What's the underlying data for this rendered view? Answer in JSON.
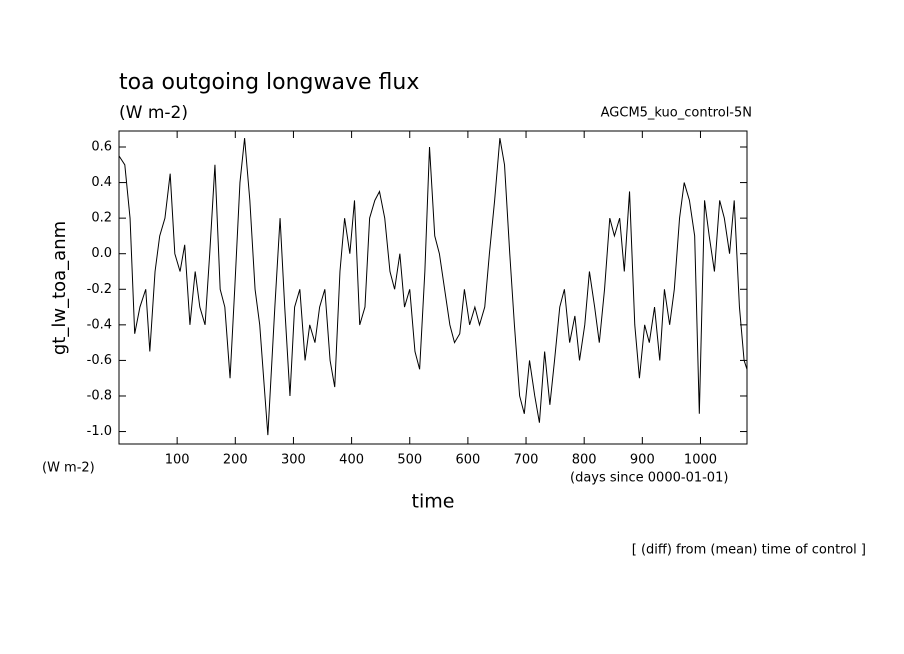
{
  "chart_data": {
    "type": "line",
    "title": "toa outgoing longwave flux",
    "units": "(W m-2)",
    "subtitle": "AGCM5_kuo_control-5N",
    "y_label": "gt_lw_toa_anm",
    "y_units": "(W m-2)",
    "x_label": "time",
    "x_units": "(days since 0000-01-01)",
    "footnote": "[ (diff) from (mean) time of control ]",
    "color": "#000000",
    "xlim": [
      0,
      1080
    ],
    "ylim": [
      -1.07,
      0.69
    ],
    "xticks": [
      100,
      200,
      300,
      400,
      500,
      600,
      700,
      800,
      900,
      1000
    ],
    "yticks": [
      {
        "value": -1,
        "label": "-1.0"
      },
      -0.8,
      -0.6,
      -0.4,
      -0.2,
      {
        "value": 0,
        "label": "0.0"
      },
      0.2,
      0.4,
      0.6
    ],
    "x": [
      0,
      10,
      19,
      27,
      36,
      46,
      53,
      62,
      70,
      79,
      88,
      96,
      105,
      113,
      122,
      131,
      139,
      148,
      156,
      165,
      174,
      182,
      191,
      199,
      208,
      216,
      225,
      234,
      242,
      251,
      256,
      268,
      277,
      285,
      294,
      302,
      311,
      320,
      328,
      337,
      345,
      354,
      363,
      371,
      380,
      388,
      397,
      405,
      414,
      423,
      431,
      440,
      448,
      457,
      466,
      474,
      483,
      491,
      500,
      509,
      517,
      526,
      534,
      543,
      551,
      560,
      569,
      577,
      586,
      594,
      603,
      612,
      620,
      629,
      637,
      646,
      655,
      663,
      672,
      680,
      689,
      697,
      706,
      715,
      723,
      732,
      741,
      749,
      758,
      766,
      775,
      784,
      792,
      801,
      809,
      818,
      826,
      835,
      844,
      852,
      861,
      869,
      878,
      887,
      895,
      904,
      912,
      921,
      930,
      938,
      947,
      955,
      964,
      972,
      981,
      990,
      998,
      1007,
      1015,
      1024,
      1033,
      1041,
      1050,
      1058,
      1067,
      1075,
      1080
    ],
    "values": [
      0.55,
      0.5,
      0.2,
      -0.45,
      -0.3,
      -0.2,
      -0.55,
      -0.1,
      0.1,
      0.2,
      0.45,
      0.0,
      -0.1,
      0.05,
      -0.4,
      -0.1,
      -0.3,
      -0.4,
      0.0,
      0.5,
      -0.2,
      -0.3,
      -0.7,
      -0.2,
      0.4,
      0.65,
      0.3,
      -0.2,
      -0.4,
      -0.8,
      -1.02,
      -0.3,
      0.2,
      -0.3,
      -0.8,
      -0.3,
      -0.2,
      -0.6,
      -0.4,
      -0.5,
      -0.3,
      -0.2,
      -0.6,
      -0.75,
      -0.1,
      0.2,
      0.0,
      0.3,
      -0.4,
      -0.3,
      0.2,
      0.3,
      0.35,
      0.2,
      -0.1,
      -0.2,
      0.0,
      -0.3,
      -0.2,
      -0.55,
      -0.65,
      -0.1,
      0.6,
      0.1,
      0.0,
      -0.2,
      -0.4,
      -0.5,
      -0.45,
      -0.2,
      -0.4,
      -0.3,
      -0.4,
      -0.3,
      0.0,
      0.3,
      0.65,
      0.5,
      0.0,
      -0.4,
      -0.8,
      -0.9,
      -0.6,
      -0.8,
      -0.95,
      -0.55,
      -0.85,
      -0.6,
      -0.3,
      -0.2,
      -0.5,
      -0.35,
      -0.6,
      -0.4,
      -0.1,
      -0.3,
      -0.5,
      -0.2,
      0.2,
      0.1,
      0.2,
      -0.1,
      0.35,
      -0.4,
      -0.7,
      -0.4,
      -0.5,
      -0.3,
      -0.6,
      -0.2,
      -0.4,
      -0.2,
      0.2,
      0.4,
      0.3,
      0.1,
      -0.9,
      0.3,
      0.1,
      -0.1,
      0.3,
      0.2,
      0.0,
      0.3,
      -0.3,
      -0.6,
      -0.65
    ]
  }
}
